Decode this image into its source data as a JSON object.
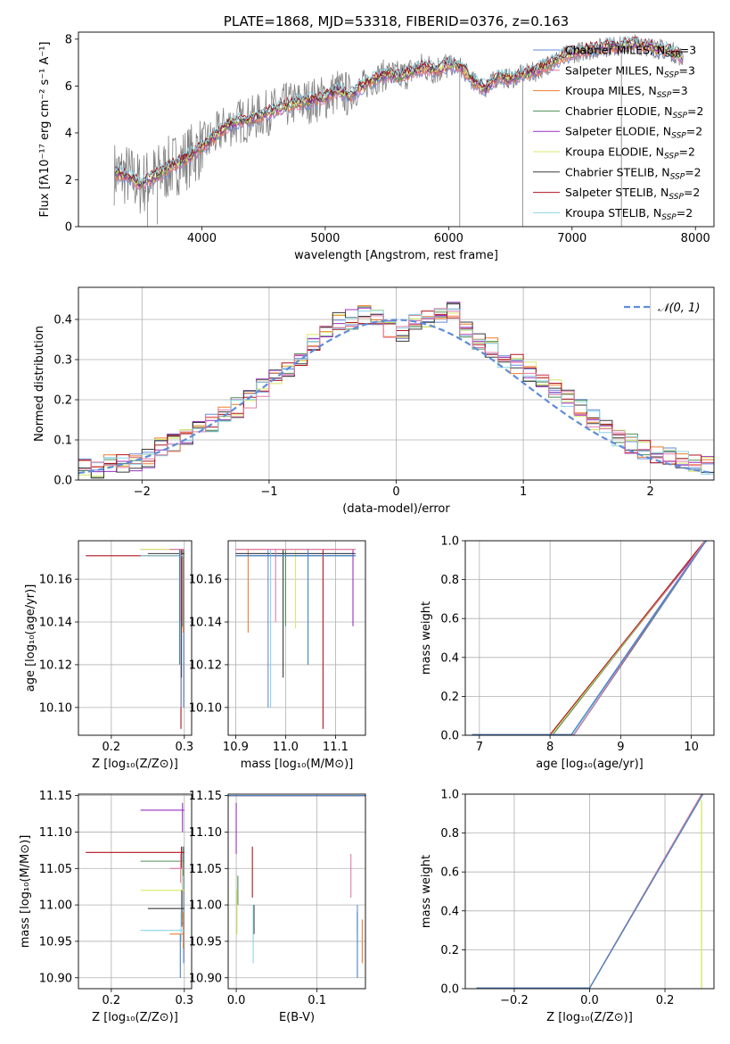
{
  "colors": {
    "blue": "#6a8ad8",
    "orange": "#f07b2d",
    "olive": "#c09a2c",
    "green": "#4f8f55",
    "purple": "#9b2fbf",
    "yellow": "#d9e86a",
    "dark": "#3a3a3a",
    "red": "#b0141c",
    "cyan": "#8ad4e6",
    "pink": "#e27aa8",
    "steel": "#3f84c8",
    "normal": "#5f8dd8",
    "gray": "#808080"
  },
  "chart_data": [
    {
      "id": "spectrum",
      "type": "line",
      "title": "PLATE=1868, MJD=53318, FIBERID=0376, z=0.163",
      "xlabel": "wavelength [Angstrom, rest frame]",
      "ylabel": "Flux [fλ10⁻¹⁷ erg cm⁻² s⁻¹ A⁻¹]",
      "xlim": [
        3000,
        8150
      ],
      "ylim": [
        0,
        8.3
      ],
      "xticks": [
        4000,
        5000,
        6000,
        7000,
        8000
      ],
      "yticks": [
        0,
        2,
        4,
        6,
        8
      ],
      "grid": false,
      "legend_position": "top-right",
      "data_continuum": {
        "x": [
          3290,
          3400,
          3500,
          3600,
          3700,
          3800,
          3900,
          4000,
          4100,
          4200,
          4300,
          4400,
          4500,
          4600,
          4700,
          4800,
          4900,
          5000,
          5100,
          5200,
          5300,
          5400,
          5500,
          5600,
          5700,
          5800,
          5900,
          6000,
          6100,
          6200,
          6300,
          6400,
          6500,
          6600,
          6700,
          6800,
          6900,
          7000,
          7100,
          7200,
          7300,
          7400,
          7500,
          7600,
          7700,
          7800,
          7900
        ],
        "y": [
          2.3,
          2.2,
          1.8,
          2.1,
          2.4,
          2.7,
          3.0,
          3.4,
          3.8,
          4.3,
          4.5,
          4.6,
          4.8,
          5.0,
          5.2,
          5.3,
          5.4,
          5.5,
          5.8,
          5.6,
          6.0,
          6.3,
          6.5,
          6.4,
          6.6,
          6.8,
          6.7,
          6.9,
          6.8,
          6.2,
          5.9,
          6.4,
          6.3,
          6.5,
          6.6,
          6.9,
          7.2,
          7.4,
          7.5,
          7.6,
          7.7,
          7.7,
          7.8,
          7.7,
          7.6,
          7.5,
          7.2
        ]
      },
      "series": [
        {
          "name": "Chabrier MILES, N_SSP=3",
          "color": "blue"
        },
        {
          "name": "Salpeter MILES, N_SSP=3",
          "color": "pink"
        },
        {
          "name": "Kroupa MILES, N_SSP=3",
          "color": "orange"
        },
        {
          "name": "Chabrier ELODIE, N_SSP=2",
          "color": "green"
        },
        {
          "name": "Salpeter ELODIE, N_SSP=2",
          "color": "purple"
        },
        {
          "name": "Kroupa ELODIE, N_SSP=2",
          "color": "yellow"
        },
        {
          "name": "Chabrier STELIB, N_SSP=2",
          "color": "dark"
        },
        {
          "name": "Salpeter STELIB, N_SSP=2",
          "color": "red"
        },
        {
          "name": "Kroupa STELIB, N_SSP=2",
          "color": "cyan"
        }
      ]
    },
    {
      "id": "residuals",
      "type": "line",
      "xlabel": "(data-model)/error",
      "ylabel": "Normed distribution",
      "xlim": [
        -2.5,
        2.5
      ],
      "ylim": [
        0,
        0.48
      ],
      "xticks": [
        -2,
        -1,
        0,
        1,
        2
      ],
      "yticks": [
        0.0,
        0.1,
        0.2,
        0.3,
        0.4
      ],
      "grid": true,
      "legend_position": "top-right",
      "legend": "𝒩(0, 1)",
      "hist_base": [
        0.03,
        0.028,
        0.038,
        0.04,
        0.048,
        0.055,
        0.08,
        0.09,
        0.11,
        0.13,
        0.14,
        0.16,
        0.18,
        0.2,
        0.23,
        0.25,
        0.28,
        0.3,
        0.34,
        0.38,
        0.4,
        0.4,
        0.41,
        0.4,
        0.38,
        0.37,
        0.4,
        0.4,
        0.41,
        0.42,
        0.38,
        0.35,
        0.33,
        0.3,
        0.29,
        0.27,
        0.25,
        0.23,
        0.2,
        0.18,
        0.15,
        0.13,
        0.1,
        0.09,
        0.075,
        0.065,
        0.06,
        0.05,
        0.045,
        0.04
      ]
    },
    {
      "id": "age_vs_Z",
      "type": "scatter",
      "xlabel": "Z [log₁₀(Z/Z⊙)]",
      "ylabel": "age  [log₁₀(age/yr)]",
      "xlim": [
        0.155,
        0.31
      ],
      "ylim": [
        10.087,
        10.178
      ],
      "xticks": [
        0.2,
        0.3
      ],
      "yticks": [
        10.1,
        10.12,
        10.14,
        10.16
      ],
      "grid": true
    },
    {
      "id": "age_vs_mass",
      "type": "scatter",
      "xlabel": "mass [log₁₀(M/M⊙)]",
      "xlim": [
        10.885,
        11.16
      ],
      "ylim": [
        10.087,
        10.178
      ],
      "xticks": [
        10.9,
        11.0,
        11.1
      ],
      "yticks": [
        10.1,
        10.12,
        10.14,
        10.16
      ],
      "grid": true
    },
    {
      "id": "mass_weight_age",
      "type": "line",
      "xlabel": "age  [log₁₀(age/yr)]",
      "ylabel": "mass weight",
      "xlim": [
        6.8,
        10.32
      ],
      "ylim": [
        0,
        1.0
      ],
      "xticks": [
        7,
        8,
        9,
        10
      ],
      "yticks": [
        0.0,
        0.2,
        0.4,
        0.6,
        0.8,
        1.0
      ],
      "grid": true
    },
    {
      "id": "mass_vs_Z",
      "type": "scatter",
      "xlabel": "Z [log₁₀(Z/Z⊙)]",
      "ylabel": "mass [log₁₀(M/M⊙)]",
      "xlim": [
        0.155,
        0.31
      ],
      "ylim": [
        10.885,
        11.152
      ],
      "xticks": [
        0.2,
        0.3
      ],
      "yticks": [
        10.9,
        10.95,
        11.0,
        11.05,
        11.1,
        11.15
      ],
      "grid": true
    },
    {
      "id": "mass_vs_ebv",
      "type": "scatter",
      "xlabel": "E(B-V)",
      "xlim": [
        -0.01,
        0.16
      ],
      "ylim": [
        10.885,
        11.152
      ],
      "xticks": [
        0.0,
        0.1
      ],
      "yticks": [
        10.9,
        10.95,
        11.0,
        11.05,
        11.1,
        11.15
      ],
      "grid": true
    },
    {
      "id": "mass_weight_Z",
      "type": "line",
      "xlabel": "Z [log₁₀(Z/Z⊙)]",
      "ylabel": "mass weight",
      "xlim": [
        -0.33,
        0.33
      ],
      "ylim": [
        0,
        1.0
      ],
      "xticks": [
        -0.2,
        0.0,
        0.2
      ],
      "yticks": [
        0.0,
        0.2,
        0.4,
        0.6,
        0.8,
        1.0
      ],
      "grid": true
    }
  ],
  "fits": {
    "colors": [
      "blue",
      "orange",
      "green",
      "purple",
      "yellow",
      "dark",
      "red",
      "cyan",
      "pink",
      "steel"
    ],
    "Z": [
      0.296,
      0.28,
      0.24,
      0.24,
      0.24,
      0.25,
      0.165,
      0.24,
      0.28,
      0.3
    ],
    "age": [
      10.172,
      10.174,
      10.171,
      10.174,
      10.174,
      10.172,
      10.171,
      10.171,
      10.174,
      10.171
    ],
    "age_hi": [
      10.174,
      10.174,
      10.174,
      10.174,
      10.174,
      10.174,
      10.174,
      10.174,
      10.174,
      10.174
    ],
    "age_lo": [
      10.1,
      10.135,
      10.138,
      10.138,
      10.137,
      10.114,
      10.09,
      10.1,
      10.14,
      10.12
    ],
    "mass": [
      10.975,
      10.96,
      11.06,
      11.13,
      11.02,
      10.995,
      11.072,
      10.965,
      11.05,
      10.93
    ],
    "mass_hi": [
      11.08,
      10.99,
      11.08,
      11.14,
      11.06,
      11.02,
      11.08,
      10.99,
      11.07,
      10.96
    ],
    "mass_lo": [
      10.92,
      10.94,
      11.04,
      11.1,
      10.98,
      10.97,
      11.05,
      10.95,
      11.03,
      10.9
    ],
    "ebv": [
      0.15,
      0.155,
      0.0,
      0.0,
      0.0,
      0.02,
      0.02,
      0.02,
      0.14,
      0.15
    ],
    "ebv_hi": [
      11.0,
      10.98,
      11.04,
      11.14,
      11.02,
      11.0,
      11.08,
      11.0,
      11.07,
      10.99
    ],
    "ebv_lo": [
      10.96,
      10.92,
      11.0,
      11.07,
      10.96,
      10.96,
      11.01,
      10.92,
      11.01,
      10.9
    ],
    "mw_age_start": [
      8.3,
      8.0,
      8.0,
      8.0,
      8.0,
      8.3,
      8.0,
      8.3,
      8.3,
      8.3
    ],
    "mw_Z_start": [
      0.0,
      0.0,
      0.0,
      0.0,
      0.0,
      0.0,
      0.0,
      0.0,
      0.0,
      0.0
    ]
  }
}
